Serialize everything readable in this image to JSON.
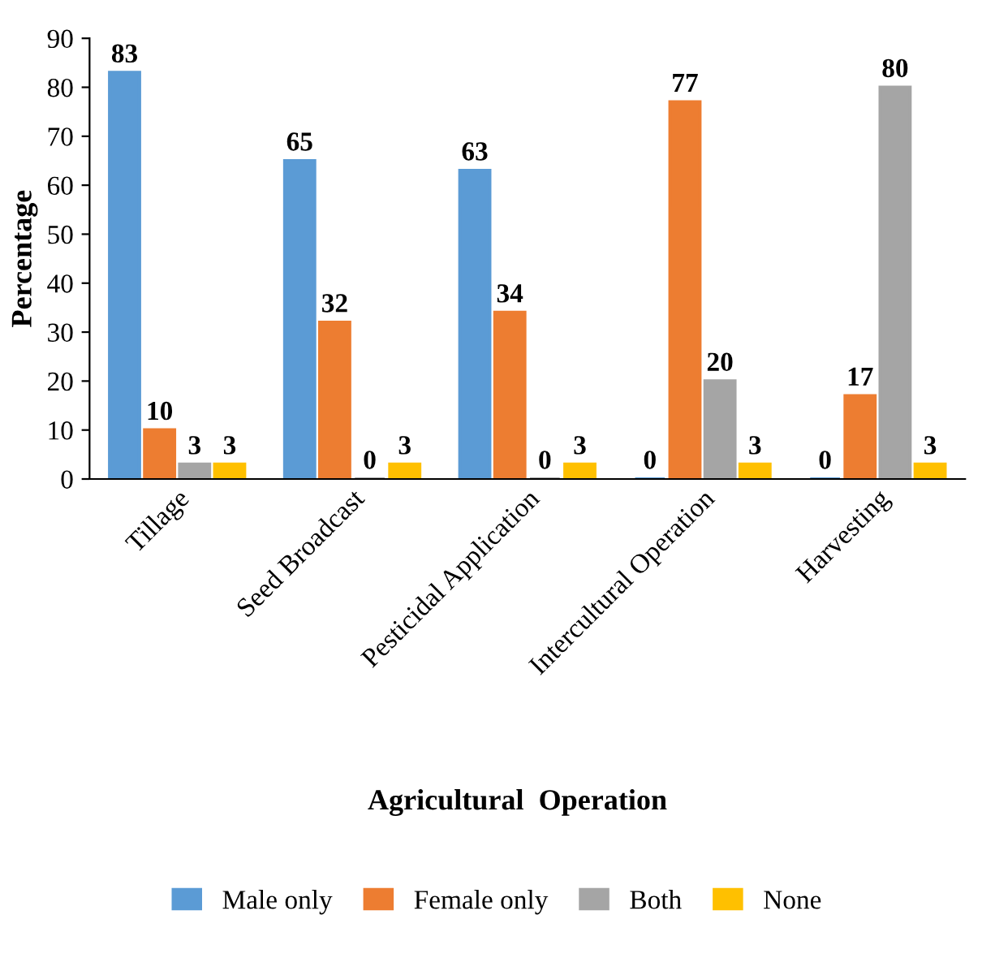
{
  "chart_data": {
    "type": "bar",
    "xlabel": "Agricultural  Operation",
    "ylabel": "Percentage",
    "categories": [
      "Tillage",
      "Seed Broadcast",
      "Pesticidal Application",
      "Intercultural Operation",
      "Harvesting"
    ],
    "series": [
      {
        "name": "Male only",
        "color": "#5b9bd5",
        "values": [
          83,
          65,
          63,
          0,
          0
        ]
      },
      {
        "name": "Female only",
        "color": "#ed7d31",
        "values": [
          10,
          32,
          34,
          77,
          17
        ]
      },
      {
        "name": "Both",
        "color": "#a5a5a5",
        "values": [
          3,
          0,
          0,
          20,
          80
        ]
      },
      {
        "name": "None",
        "color": "#ffc000",
        "values": [
          3,
          3,
          3,
          3,
          3
        ]
      }
    ],
    "ylim": [
      0,
      90
    ],
    "yticks": [
      0,
      10,
      20,
      30,
      40,
      50,
      60,
      70,
      80,
      90
    ],
    "grid": false,
    "legend": "bottom",
    "data_labels": true
  }
}
